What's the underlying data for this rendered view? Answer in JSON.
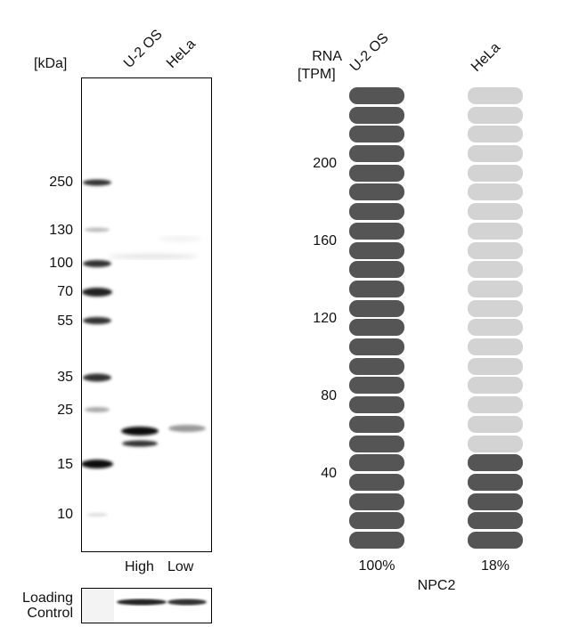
{
  "western_blot": {
    "unit_label": "[kDa]",
    "lanes": [
      "U-2 OS",
      "HeLa"
    ],
    "markers": [
      "250",
      "130",
      "100",
      "70",
      "55",
      "35",
      "25",
      "15",
      "10"
    ],
    "lane_levels": [
      "High",
      "Low"
    ],
    "loading_control": {
      "line1": "Loading",
      "line2": "Control"
    }
  },
  "rna": {
    "axis_title_line1": "RNA",
    "axis_title_line2": "[TPM]",
    "columns": [
      {
        "name": "U-2 OS",
        "percent": "100%",
        "filled": 24,
        "total": 24,
        "color": "#555555"
      },
      {
        "name": "HeLa",
        "percent": "18%",
        "filled": 5,
        "total": 24,
        "color": "#555555",
        "empty_color": "#d3d3d3"
      }
    ],
    "ticks": [
      "200",
      "160",
      "120",
      "80",
      "40"
    ],
    "gene": "NPC2"
  }
}
